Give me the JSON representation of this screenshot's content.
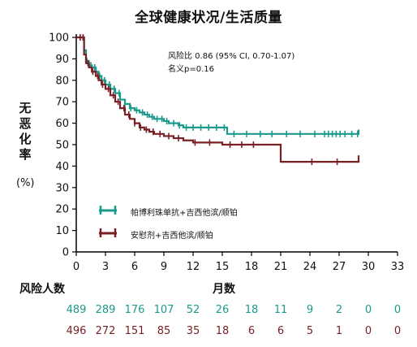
{
  "title": "全球健康状况/生活质量",
  "ylabel_chars": [
    "无",
    "恶",
    "化",
    "率"
  ],
  "ylabel_unit": "(%)",
  "hazard_ratio": "风险比 0.86 (95% CI, 0.70-1.07)",
  "p_value": "名义p=0.16",
  "risk_table": {
    "label": "风险人数",
    "rows": [
      {
        "series": "帕博利珠单抗+吉西他滨/顺铂",
        "color": "#1a9a8c",
        "counts": [
          "489",
          "289",
          "176",
          "107",
          "52",
          "26",
          "18",
          "11",
          "9",
          "2",
          "0",
          "0"
        ]
      },
      {
        "series": "安慰剂+吉西他滨/顺铂",
        "color": "#7a1f24",
        "counts": [
          "496",
          "272",
          "151",
          "85",
          "35",
          "18",
          "6",
          "6",
          "5",
          "1",
          "0",
          "0"
        ]
      }
    ]
  },
  "chart_data": {
    "type": "line",
    "title": "全球健康状况/生活质量",
    "xlabel": "月数",
    "ylabel": "无恶化率 (%)",
    "xlim": [
      0,
      33
    ],
    "ylim": [
      0,
      100
    ],
    "x_ticks": [
      0,
      3,
      6,
      9,
      12,
      15,
      18,
      21,
      24,
      27,
      30,
      33
    ],
    "y_ticks": [
      0,
      10,
      20,
      30,
      40,
      50,
      60,
      70,
      80,
      90,
      100
    ],
    "grid": false,
    "legend_position": "lower-left",
    "series": [
      {
        "name": "帕博利珠单抗+吉西他滨/顺铂",
        "color": "#1a9a8c",
        "points": [
          [
            0,
            100
          ],
          [
            0.8,
            100
          ],
          [
            0.8,
            94
          ],
          [
            1,
            89
          ],
          [
            1.3,
            87
          ],
          [
            1.6,
            86
          ],
          [
            2,
            84
          ],
          [
            2.3,
            82
          ],
          [
            2.6,
            80
          ],
          [
            3,
            78
          ],
          [
            3.5,
            76
          ],
          [
            4,
            74
          ],
          [
            4.5,
            71
          ],
          [
            5,
            69
          ],
          [
            5.5,
            67
          ],
          [
            6,
            66
          ],
          [
            6.5,
            65
          ],
          [
            7,
            64
          ],
          [
            7.5,
            63
          ],
          [
            8,
            62
          ],
          [
            8.5,
            62
          ],
          [
            9,
            61
          ],
          [
            9.5,
            60
          ],
          [
            10,
            60
          ],
          [
            10.5,
            59
          ],
          [
            11,
            58
          ],
          [
            12,
            58
          ],
          [
            13,
            58
          ],
          [
            14,
            58
          ],
          [
            15,
            58
          ],
          [
            15.5,
            55
          ],
          [
            21,
            55
          ],
          [
            24,
            55
          ],
          [
            27,
            55
          ],
          [
            29,
            55
          ],
          [
            29,
            57
          ]
        ],
        "censor_x": [
          0.4,
          0.7,
          1.1,
          1.5,
          1.9,
          2.4,
          2.9,
          3.4,
          3.9,
          4.4,
          5.0,
          5.6,
          6.2,
          6.8,
          7.3,
          7.8,
          8.3,
          8.8,
          9.3,
          10.0,
          10.6,
          11.3,
          12.0,
          12.8,
          13.6,
          14.4,
          15.2,
          16.2,
          17.5,
          18.9,
          20.1,
          21.6,
          23.0,
          24.5,
          25.5,
          25.9,
          26.3,
          26.7,
          27.1,
          27.6,
          28.3,
          28.9
        ]
      },
      {
        "name": "安慰剂+吉西他滨/顺铂",
        "color": "#7a1f24",
        "points": [
          [
            0,
            100
          ],
          [
            0.8,
            100
          ],
          [
            0.8,
            92
          ],
          [
            1,
            88
          ],
          [
            1.3,
            86
          ],
          [
            1.6,
            84
          ],
          [
            2,
            82
          ],
          [
            2.3,
            80
          ],
          [
            2.6,
            78
          ],
          [
            3,
            76
          ],
          [
            3.5,
            73
          ],
          [
            4,
            70
          ],
          [
            4.5,
            67
          ],
          [
            5,
            64
          ],
          [
            5.5,
            62
          ],
          [
            6,
            60
          ],
          [
            6.5,
            58
          ],
          [
            7,
            57
          ],
          [
            7.5,
            56
          ],
          [
            8,
            55
          ],
          [
            9,
            54
          ],
          [
            10,
            53
          ],
          [
            11,
            52
          ],
          [
            12,
            51
          ],
          [
            13,
            51
          ],
          [
            14,
            51
          ],
          [
            15,
            50
          ],
          [
            19,
            50
          ],
          [
            21,
            50
          ],
          [
            21,
            42
          ],
          [
            25,
            42
          ],
          [
            29,
            42
          ],
          [
            29,
            45
          ]
        ],
        "censor_x": [
          0.4,
          0.7,
          1.2,
          1.7,
          2.2,
          2.7,
          3.3,
          3.8,
          4.3,
          4.9,
          5.4,
          6.0,
          6.6,
          7.2,
          7.9,
          8.6,
          9.5,
          10.5,
          12.2,
          13.7,
          15.8,
          17.0,
          18.2,
          24.2,
          26.8
        ]
      }
    ]
  }
}
